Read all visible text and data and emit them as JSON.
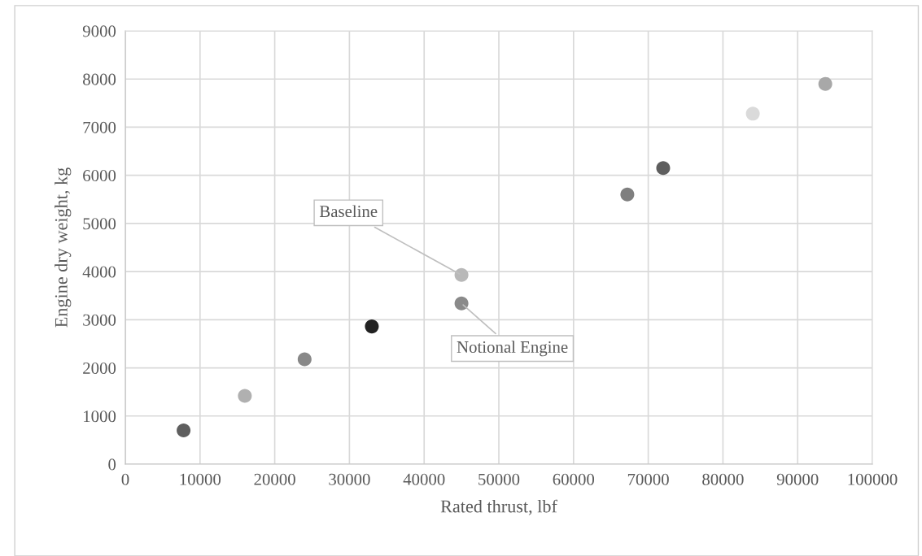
{
  "chart_data": {
    "type": "scatter",
    "xlabel": "Rated thrust, lbf",
    "ylabel": "Engine dry weight, kg",
    "x": [
      7800,
      16000,
      24000,
      33000,
      45000,
      45000,
      67200,
      72000,
      84000,
      93700
    ],
    "values": [
      700,
      1420,
      2180,
      2860,
      3930,
      3340,
      5600,
      6150,
      7280,
      7900
    ],
    "colors": [
      "#5f5f5f",
      "#b0b0b0",
      "#888888",
      "#222222",
      "#b8b8b8",
      "#8a8a8a",
      "#7f7f7f",
      "#5e5e5e",
      "#dadada",
      "#a8a8a8"
    ],
    "annotations": [
      {
        "text": "Baseline",
        "x": 45000,
        "y": 3930
      },
      {
        "text": "Notional Engine",
        "x": 45000,
        "y": 3340
      }
    ],
    "xlim": [
      0,
      100000
    ],
    "xticks": [
      0,
      10000,
      20000,
      30000,
      40000,
      50000,
      60000,
      70000,
      80000,
      90000,
      100000
    ],
    "ylim": [
      0,
      9000
    ],
    "yticks": [
      0,
      1000,
      2000,
      3000,
      4000,
      5000,
      6000,
      7000,
      8000,
      9000
    ],
    "grid": true,
    "marker": "circle"
  }
}
